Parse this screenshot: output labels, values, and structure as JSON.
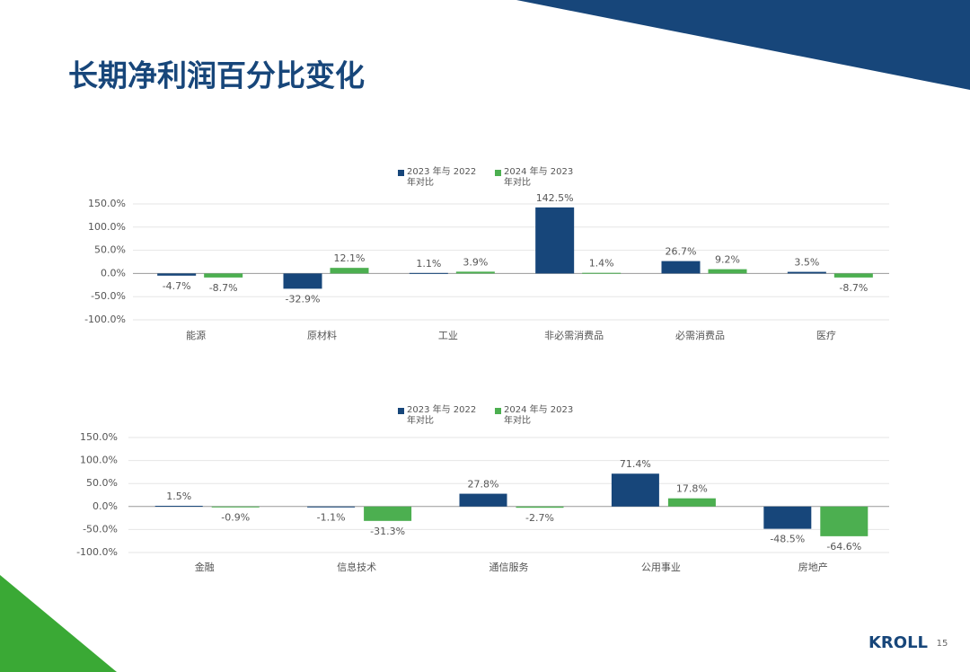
{
  "title": "长期净利润百分比变化",
  "footer": {
    "logo": "KROLL",
    "page": "15"
  },
  "chart_data": [
    {
      "type": "bar",
      "categories": [
        "能源",
        "原材料",
        "工业",
        "非必需消费品",
        "必需消费品",
        "医疗"
      ],
      "series": [
        {
          "name": "2023 年与 2022 年对比",
          "color": "#17467a",
          "values": [
            -4.7,
            -32.9,
            1.1,
            142.5,
            26.7,
            3.5
          ],
          "value_labels": [
            "-4.7%",
            "-32.9%",
            "1.1%",
            "142.5%",
            "26.7%",
            "3.5%"
          ]
        },
        {
          "name": "2024 年与 2023 年对比",
          "color": "#4caf50",
          "values": [
            -8.7,
            12.1,
            3.9,
            1.4,
            9.2,
            -8.7
          ],
          "value_labels": [
            "-8.7%",
            "12.1%",
            "3.9%",
            "1.4%",
            "9.2%",
            "-8.7%"
          ]
        }
      ],
      "ylim": [
        -100,
        150
      ],
      "yticks": [
        {
          "value": -100,
          "label": "-100.0%"
        },
        {
          "value": -50,
          "label": "-50.0%"
        },
        {
          "value": 0,
          "label": "0.0%"
        },
        {
          "value": 50,
          "label": "50.0%"
        },
        {
          "value": 100,
          "label": "100.0%"
        },
        {
          "value": 150,
          "label": "150.0%"
        }
      ],
      "grid": true,
      "legend": "top"
    },
    {
      "type": "bar",
      "categories": [
        "金融",
        "信息技术",
        "通信服务",
        "公用事业",
        "房地产"
      ],
      "series": [
        {
          "name": "2023 年与 2022 年对比",
          "color": "#17467a",
          "values": [
            1.5,
            -1.1,
            27.8,
            71.4,
            -48.5
          ],
          "value_labels": [
            "1.5%",
            "-1.1%",
            "27.8%",
            "71.4%",
            "-48.5%"
          ]
        },
        {
          "name": "2024 年与 2023 年对比",
          "color": "#4caf50",
          "values": [
            -0.9,
            -31.3,
            -2.7,
            17.8,
            -64.6
          ],
          "value_labels": [
            "-0.9%",
            "-31.3%",
            "-2.7%",
            "17.8%",
            "-64.6%"
          ]
        }
      ],
      "ylim": [
        -100,
        150
      ],
      "yticks": [
        {
          "value": -100,
          "label": "-100.0%"
        },
        {
          "value": -50,
          "label": "-50.0%"
        },
        {
          "value": 0,
          "label": "0.0%"
        },
        {
          "value": 50,
          "label": "50.0%"
        },
        {
          "value": 100,
          "label": "100.0%"
        },
        {
          "value": 150,
          "label": "150.0%"
        }
      ],
      "grid": true,
      "legend": "top"
    }
  ]
}
